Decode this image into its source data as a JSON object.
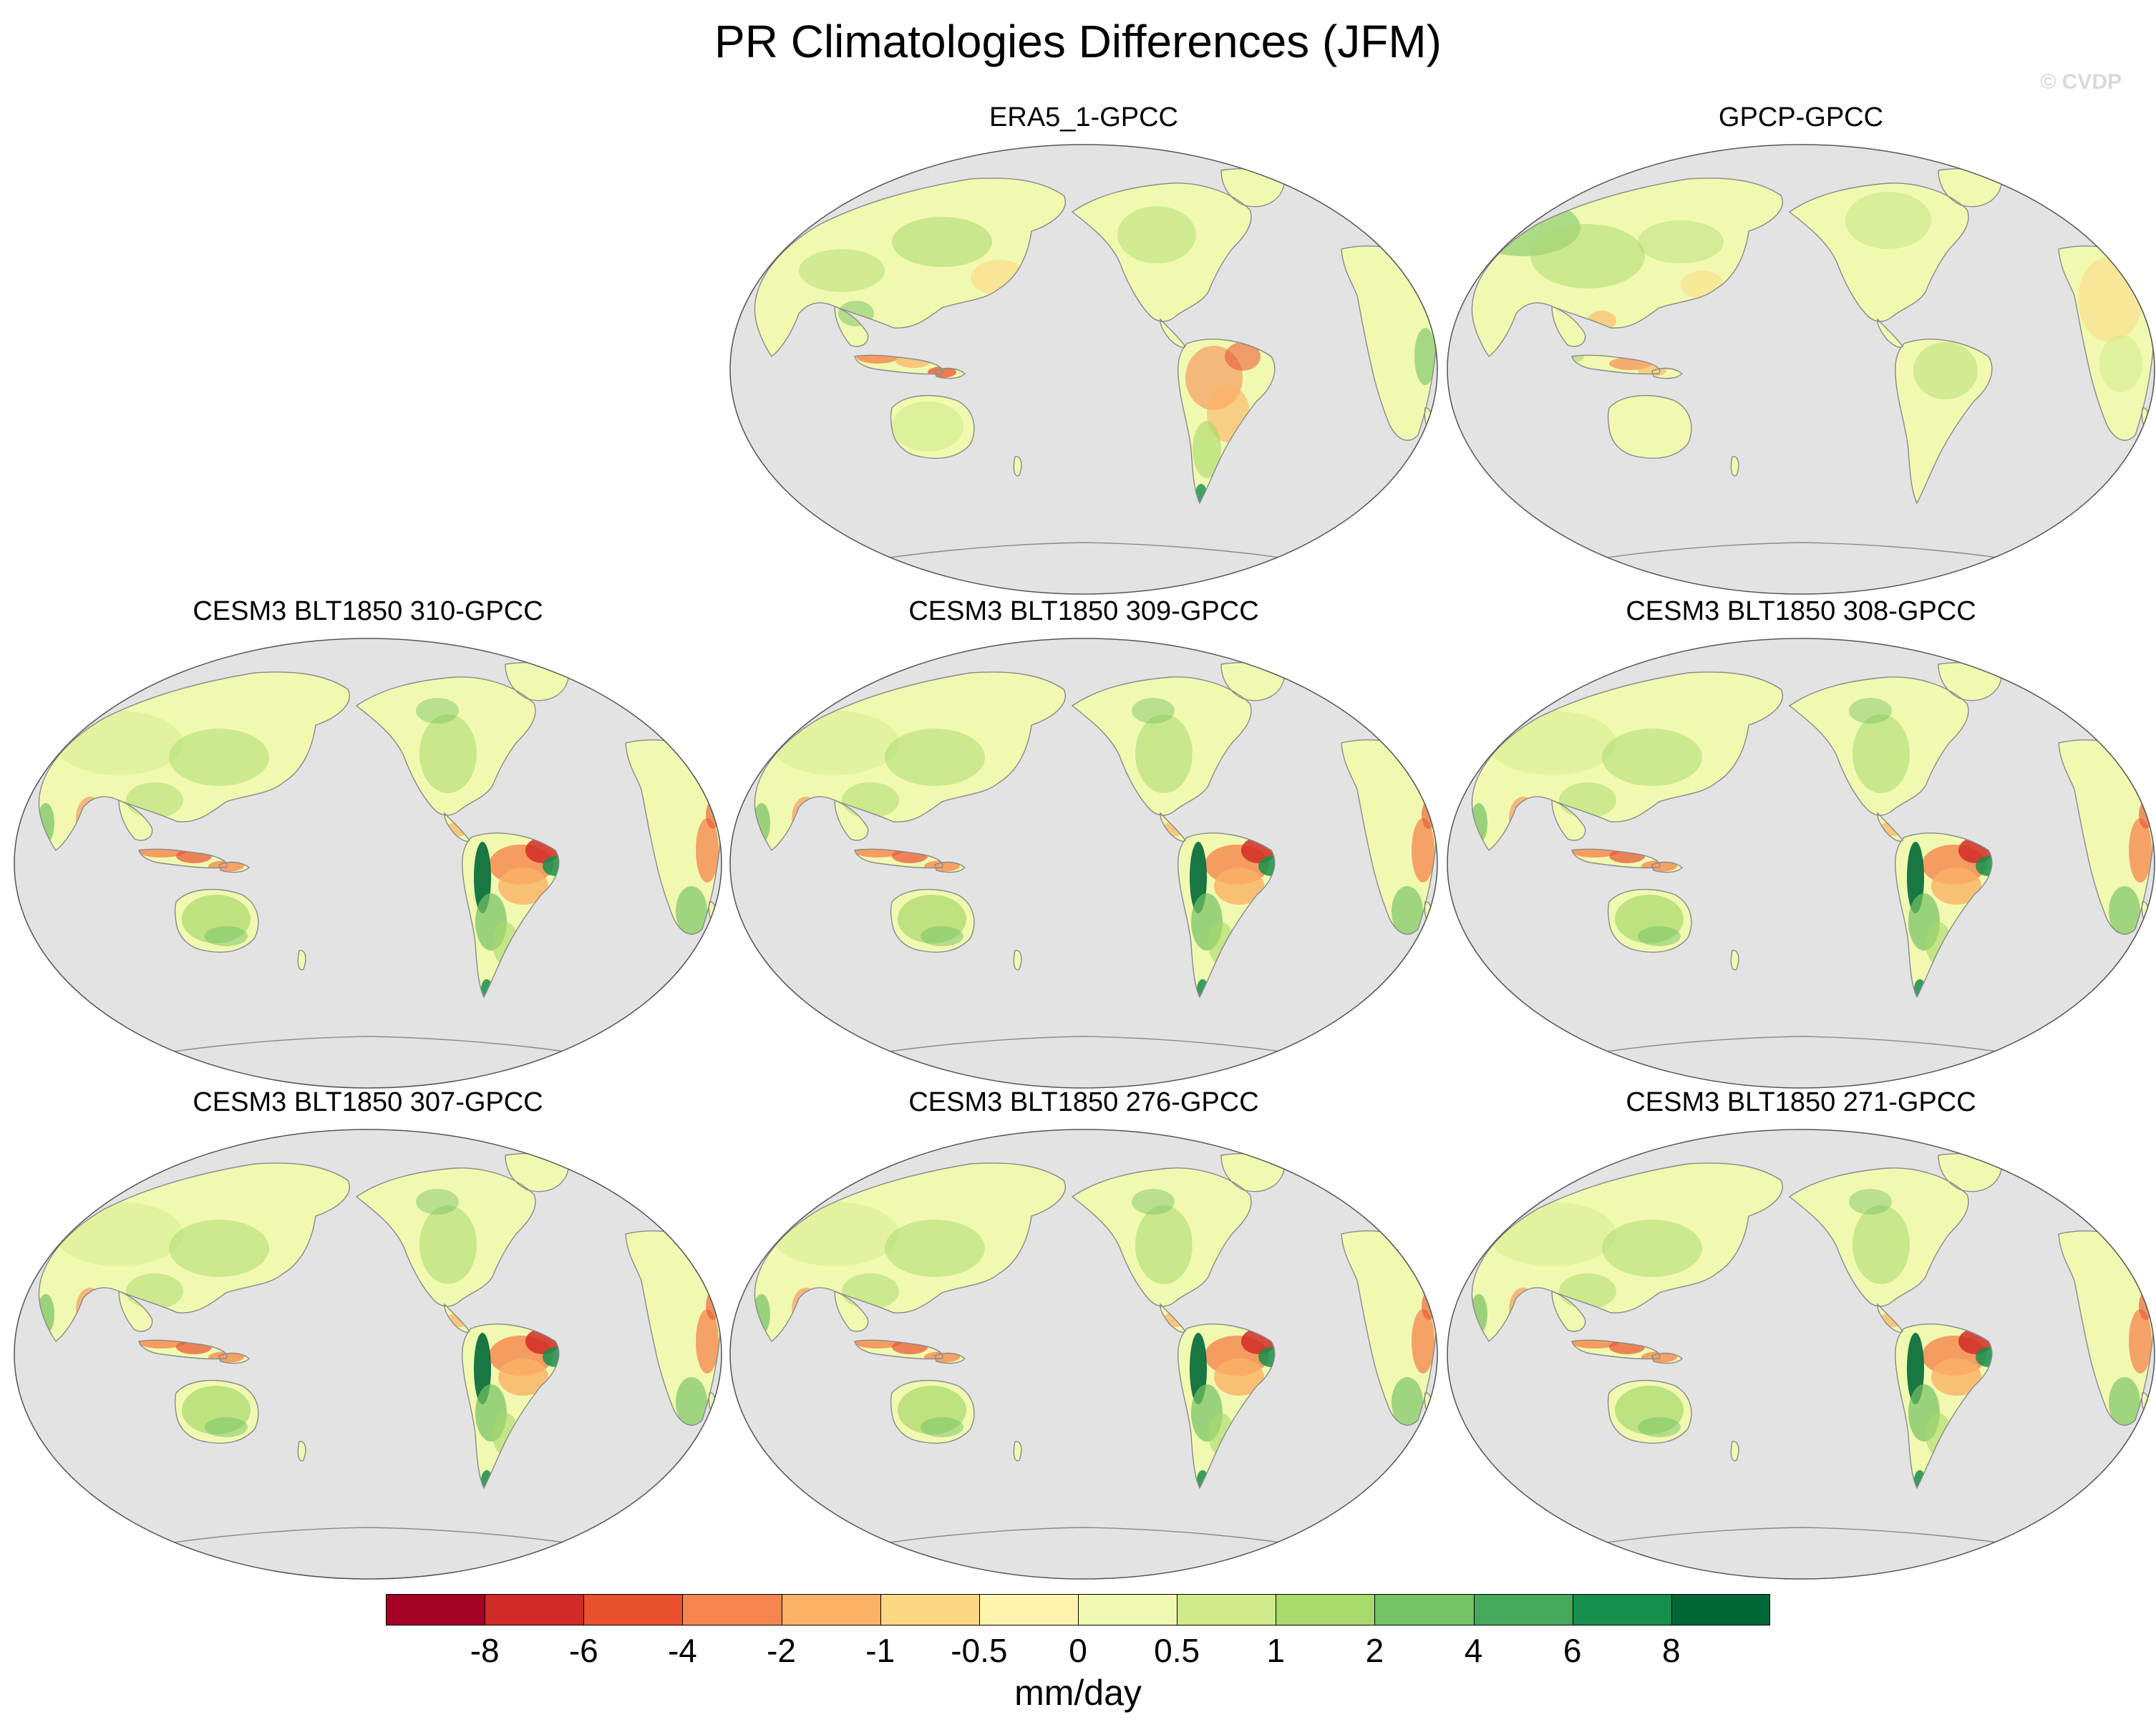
{
  "title": "PR Climatologies Differences (JFM)",
  "watermark": "© CVDP",
  "panels": [
    {
      "label": "ERA5_1-GPCC",
      "pattern": "obs_era5"
    },
    {
      "label": "GPCP-GPCC",
      "pattern": "obs_gpcp"
    },
    {
      "label": "CESM3 BLT1850 310-GPCC",
      "pattern": "model"
    },
    {
      "label": "CESM3 BLT1850 309-GPCC",
      "pattern": "model"
    },
    {
      "label": "CESM3 BLT1850 308-GPCC",
      "pattern": "model"
    },
    {
      "label": "CESM3 BLT1850 307-GPCC",
      "pattern": "model"
    },
    {
      "label": "CESM3 BLT1850 276-GPCC",
      "pattern": "model"
    },
    {
      "label": "CESM3 BLT1850 271-GPCC",
      "pattern": "model"
    }
  ],
  "colorbar": {
    "units": "mm/day",
    "labels": [
      "-8",
      "-6",
      "-4",
      "-2",
      "-1",
      "-0.5",
      "0",
      "0.5",
      "1",
      "2",
      "4",
      "6",
      "8"
    ],
    "colors": [
      "#a50026",
      "#d12b27",
      "#e9512f",
      "#f6844e",
      "#fbb265",
      "#fdd884",
      "#fef4ad",
      "#f1f9b1",
      "#cfeb8a",
      "#a8d96b",
      "#73c263",
      "#45a85a",
      "#168f4c",
      "#006837"
    ]
  },
  "colors": {
    "ocean": "#e3e3e3",
    "coast": "#8a8a8a"
  }
}
